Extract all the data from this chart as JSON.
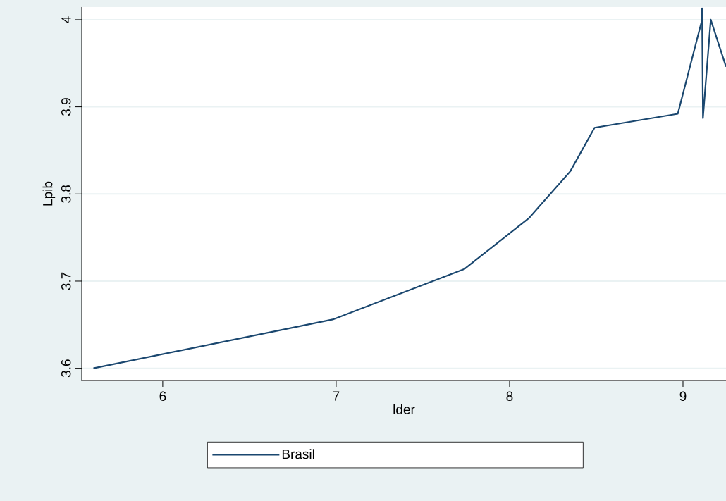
{
  "chart_data": {
    "type": "line",
    "xlabel": "lder",
    "ylabel": "Lpib",
    "x": [
      5.6,
      6.98,
      7.74,
      8.11,
      8.35,
      8.49,
      8.97,
      9.11,
      9.11,
      9.115,
      9.16,
      9.248
    ],
    "series": [
      {
        "name": "Brasil",
        "color": "#1a476f",
        "values": [
          3.6,
          3.656,
          3.714,
          3.772,
          3.826,
          3.876,
          3.892,
          4.0,
          4.013,
          3.887,
          4.0,
          3.946
        ]
      }
    ],
    "xlim": [
      5.533,
      9.248
    ],
    "ylim": [
      3.586,
      4.0145
    ],
    "xticks": [
      6,
      7,
      8,
      9
    ],
    "yticks": [
      3.6,
      3.7,
      3.8,
      3.9,
      4
    ],
    "grid": "y",
    "legend": "bottom",
    "marker": "none",
    "line_style": "solid"
  }
}
